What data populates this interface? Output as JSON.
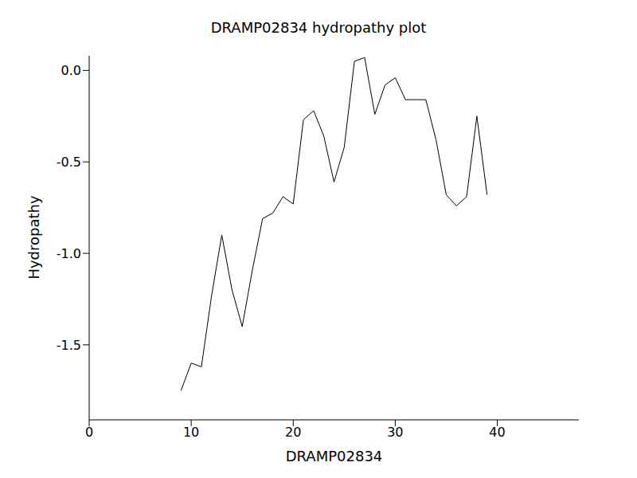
{
  "chart_data": {
    "type": "line",
    "title": "DRAMP02834 hydropathy plot",
    "x_label": "DRAMP02834",
    "y_label": "Hydropathy",
    "x": [
      9,
      10,
      11,
      12,
      13,
      14,
      15,
      16,
      17,
      18,
      19,
      20,
      21,
      22,
      23,
      24,
      25,
      26,
      27,
      28,
      29,
      30,
      31,
      32,
      33,
      34,
      35,
      36,
      37,
      38,
      39
    ],
    "values": [
      -1.75,
      -1.6,
      -1.62,
      -1.23,
      -0.9,
      -1.2,
      -1.4,
      -1.09,
      -0.81,
      -0.78,
      -0.69,
      -0.73,
      -0.27,
      -0.22,
      -0.36,
      -0.61,
      -0.42,
      0.05,
      0.07,
      -0.24,
      -0.08,
      -0.04,
      -0.16,
      -0.16,
      -0.16,
      -0.38,
      -0.68,
      -0.74,
      -0.69,
      -0.25,
      -0.68
    ],
    "color": "#000000",
    "xlim": [
      0,
      48
    ],
    "xticks": [
      0,
      10,
      20,
      30,
      40
    ],
    "ylim": [
      -1.91,
      0.08
    ],
    "yticks": [
      {
        "value": 0,
        "label": "0.0"
      },
      -0.5,
      {
        "value": -1,
        "label": "-1.0"
      },
      -1.5
    ],
    "grid": false
  }
}
